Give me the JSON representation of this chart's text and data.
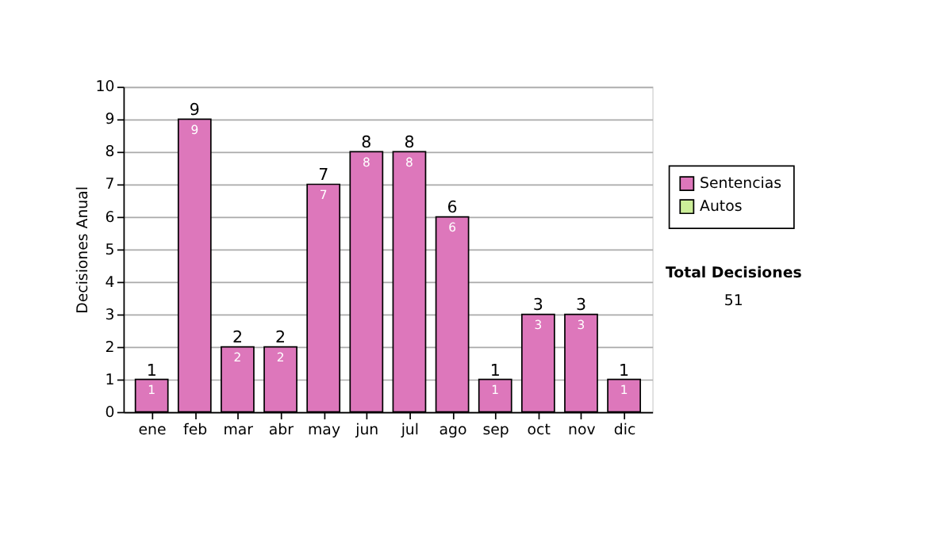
{
  "chart_data": {
    "type": "bar",
    "ylabel": "Decisiones Anual",
    "categories": [
      "ene",
      "feb",
      "mar",
      "abr",
      "may",
      "jun",
      "jul",
      "ago",
      "sep",
      "oct",
      "nov",
      "dic"
    ],
    "series": [
      {
        "name": "Sentencias",
        "color": "#dd77bb",
        "values": [
          1,
          9,
          2,
          2,
          7,
          8,
          8,
          6,
          1,
          3,
          3,
          1
        ]
      },
      {
        "name": "Autos",
        "color": "#ccee99",
        "values": [
          null,
          null,
          null,
          null,
          null,
          null,
          null,
          null,
          null,
          null,
          null,
          null
        ]
      }
    ],
    "ylim": [
      0,
      10
    ],
    "yticks": [
      0,
      1,
      2,
      3,
      4,
      5,
      6,
      7,
      8,
      9,
      10
    ],
    "grid": "y",
    "legend": "right",
    "data_labels": true,
    "annotations": [
      "Total Decisiones",
      "51",
      {
        "text": "1",
        "x": "ene",
        "y": 1
      },
      {
        "text": "9",
        "x": "feb",
        "y": 9
      },
      {
        "text": "2",
        "x": "mar",
        "y": 2
      },
      {
        "text": "2",
        "x": "abr",
        "y": 2
      },
      {
        "text": "7",
        "x": "may",
        "y": 7
      },
      {
        "text": "8",
        "x": "jun",
        "y": 8
      },
      {
        "text": "8",
        "x": "jul",
        "y": 8
      },
      {
        "text": "6",
        "x": "ago",
        "y": 6
      },
      {
        "text": "1",
        "x": "sep",
        "y": 1
      },
      {
        "text": "3",
        "x": "oct",
        "y": 3
      },
      {
        "text": "3",
        "x": "nov",
        "y": 3
      },
      {
        "text": "1",
        "x": "dic",
        "y": 1
      }
    ]
  }
}
